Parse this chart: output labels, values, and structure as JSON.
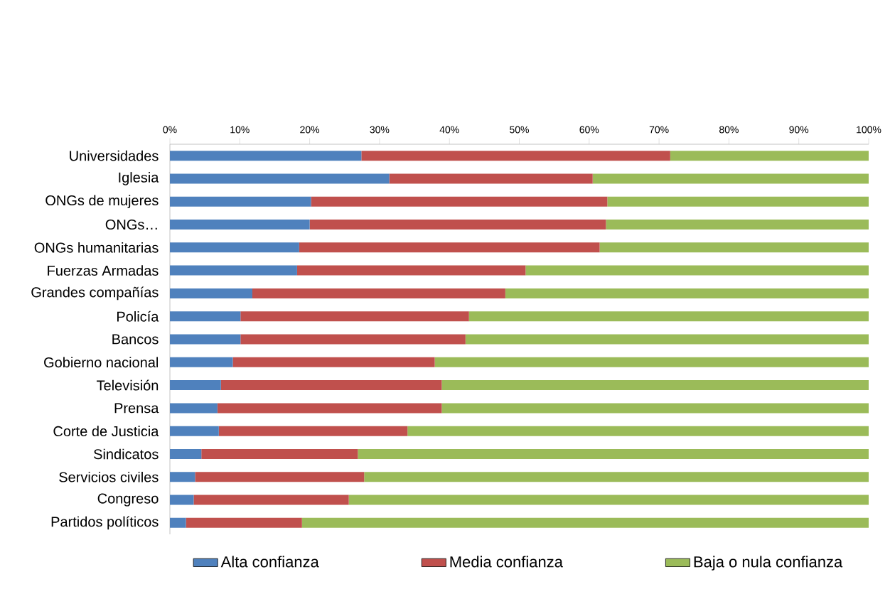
{
  "chart_data": {
    "type": "bar",
    "orientation": "horizontal",
    "stacked": true,
    "categories": [
      "Universidades",
      "Iglesia",
      "ONGs de mujeres",
      "ONGs…",
      "ONGs humanitarias",
      "Fuerzas Armadas",
      "Grandes compañías",
      "Policía",
      "Bancos",
      "Gobierno nacional",
      "Televisión",
      "Prensa",
      "Corte de Justicia",
      "Sindicatos",
      "Servicios civiles",
      "Congreso",
      "Partidos políticos"
    ],
    "series": [
      {
        "name": "Alta confianza",
        "color": "#4f81bd",
        "values": [
          27.4,
          31.4,
          20.2,
          20.0,
          18.5,
          18.2,
          11.8,
          10.1,
          10.1,
          9.0,
          7.3,
          6.8,
          7.0,
          4.5,
          3.6,
          3.4,
          2.3
        ]
      },
      {
        "name": "Media confianza",
        "color": "#c0504d",
        "values": [
          44.2,
          29.1,
          42.4,
          42.4,
          43.0,
          32.7,
          36.2,
          32.7,
          32.2,
          28.9,
          31.6,
          32.1,
          27.0,
          22.4,
          24.2,
          22.2,
          16.6
        ]
      },
      {
        "name": "Baja o nula confianza",
        "color": "#9bbb59",
        "values": [
          28.4,
          39.5,
          37.4,
          37.6,
          38.5,
          49.1,
          52.0,
          57.2,
          57.7,
          62.1,
          61.1,
          61.1,
          66.0,
          73.1,
          72.2,
          74.4,
          81.1
        ]
      }
    ],
    "xlim": [
      0,
      100
    ],
    "xticks": [
      {
        "value": 0,
        "label": "0%"
      },
      {
        "value": 10,
        "label": "10%"
      },
      {
        "value": 20,
        "label": "20%"
      },
      {
        "value": 30,
        "label": "30%"
      },
      {
        "value": 40,
        "label": "40%"
      },
      {
        "value": 50,
        "label": "50%"
      },
      {
        "value": 60,
        "label": "60%"
      },
      {
        "value": 70,
        "label": "70%"
      },
      {
        "value": 80,
        "label": "80%"
      },
      {
        "value": 90,
        "label": "90%"
      },
      {
        "value": 100,
        "label": "100%"
      }
    ],
    "legend": "bottom"
  }
}
